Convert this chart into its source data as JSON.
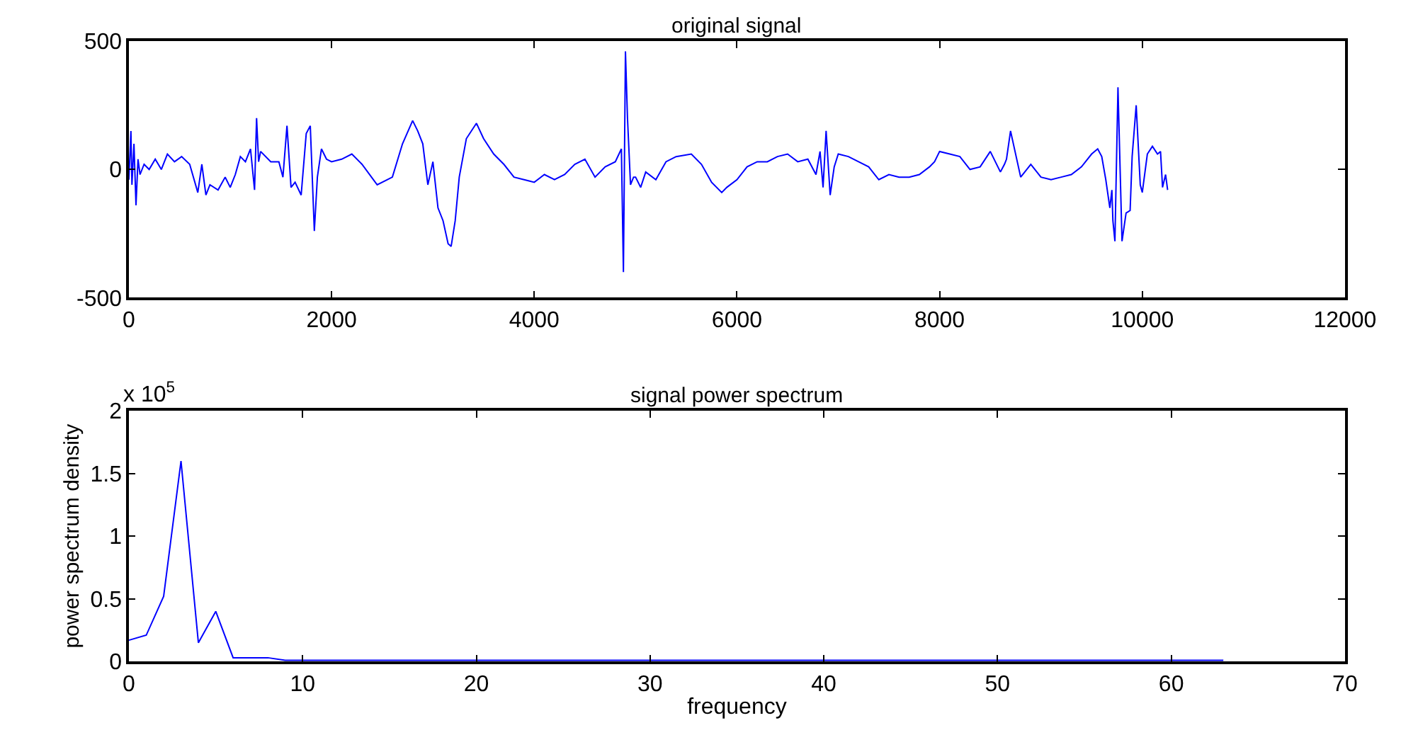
{
  "chart_data": [
    {
      "type": "line",
      "title": "original signal",
      "color": "#0000ff",
      "grid": false,
      "x": [
        0,
        20,
        30,
        50,
        70,
        90,
        110,
        150,
        200,
        260,
        320,
        380,
        450,
        520,
        600,
        680,
        720,
        760,
        800,
        880,
        950,
        1000,
        1050,
        1100,
        1150,
        1200,
        1240,
        1260,
        1280,
        1300,
        1400,
        1480,
        1520,
        1560,
        1600,
        1640,
        1700,
        1750,
        1790,
        1830,
        1860,
        1900,
        1950,
        2000,
        2100,
        2200,
        2300,
        2450,
        2600,
        2700,
        2800,
        2850,
        2900,
        2950,
        3000,
        3050,
        3100,
        3150,
        3180,
        3220,
        3260,
        3330,
        3430,
        3500,
        3600,
        3700,
        3800,
        3900,
        4000,
        4100,
        4200,
        4300,
        4400,
        4500,
        4600,
        4700,
        4800,
        4860,
        4880,
        4900,
        4920,
        4950,
        4980,
        5000,
        5050,
        5100,
        5200,
        5300,
        5400,
        5550,
        5650,
        5750,
        5850,
        5900,
        6000,
        6100,
        6200,
        6300,
        6400,
        6500,
        6600,
        6700,
        6780,
        6820,
        6850,
        6880,
        6920,
        6960,
        7000,
        7100,
        7200,
        7300,
        7400,
        7500,
        7600,
        7700,
        7800,
        7900,
        7950,
        8000,
        8100,
        8200,
        8300,
        8400,
        8500,
        8600,
        8640,
        8660,
        8700,
        8800,
        8900,
        9000,
        9100,
        9200,
        9300,
        9400,
        9500,
        9560,
        9600,
        9640,
        9680,
        9700,
        9710,
        9730,
        9760,
        9800,
        9840,
        9880,
        9900,
        9940,
        9980,
        10000,
        10050,
        10100,
        10150,
        10180,
        10200,
        10230,
        10250
      ],
      "values": [
        -40,
        150,
        -60,
        100,
        -140,
        40,
        -20,
        20,
        0,
        40,
        0,
        60,
        30,
        50,
        20,
        -90,
        20,
        -100,
        -60,
        -80,
        -30,
        -70,
        -20,
        50,
        30,
        80,
        -80,
        200,
        30,
        70,
        30,
        30,
        -30,
        170,
        -70,
        -50,
        -100,
        140,
        170,
        -240,
        -30,
        80,
        40,
        30,
        40,
        60,
        20,
        -60,
        -30,
        100,
        190,
        150,
        100,
        -60,
        30,
        -150,
        -200,
        -290,
        -300,
        -200,
        -30,
        120,
        180,
        120,
        60,
        20,
        -30,
        -40,
        -50,
        -20,
        -40,
        -20,
        20,
        40,
        -30,
        10,
        30,
        80,
        -400,
        460,
        200,
        -60,
        -30,
        -30,
        -70,
        -10,
        -40,
        30,
        50,
        60,
        20,
        -50,
        -90,
        -70,
        -40,
        10,
        30,
        30,
        50,
        60,
        30,
        40,
        -20,
        70,
        -70,
        150,
        -100,
        10,
        60,
        50,
        30,
        10,
        -40,
        -20,
        -30,
        -30,
        -20,
        10,
        30,
        70,
        60,
        50,
        0,
        10,
        70,
        -10,
        20,
        40,
        150,
        -30,
        20,
        -30,
        -40,
        -30,
        -20,
        10,
        60,
        80,
        50,
        -40,
        -150,
        -80,
        -200,
        -280,
        320,
        -280,
        -170,
        -160,
        50,
        250,
        -60,
        -90,
        60,
        90,
        60,
        70,
        -70,
        -20,
        -80
      ],
      "xlim": [
        0,
        12000
      ],
      "xticks": [
        0,
        2000,
        4000,
        6000,
        8000,
        10000,
        12000
      ],
      "ylim": [
        -500,
        500
      ],
      "yticks": [
        -500,
        0,
        500
      ]
    },
    {
      "type": "line",
      "title": "signal power spectrum",
      "xlabel": "frequency",
      "ylabel": "power spectrum density",
      "color": "#0000ff",
      "grid": false,
      "annotations": [
        "x 10$^{5}$"
      ],
      "x": [
        0,
        1,
        2,
        3,
        4,
        5,
        6,
        7,
        8,
        9,
        10,
        11,
        12,
        13,
        14,
        15,
        16,
        17,
        18,
        19,
        20,
        21,
        22,
        23,
        24,
        25,
        26,
        27,
        28,
        29,
        30,
        31,
        32,
        33,
        34,
        35,
        36,
        37,
        38,
        39,
        40,
        41,
        42,
        43,
        44,
        45,
        46,
        47,
        48,
        49,
        50,
        51,
        52,
        53,
        54,
        55,
        56,
        57,
        58,
        59,
        60,
        61,
        62,
        63
      ],
      "values": [
        0.17,
        0.21,
        0.52,
        1.6,
        0.15,
        0.4,
        0.03,
        0.03,
        0.03,
        0.01,
        0.01,
        0.01,
        0.01,
        0.01,
        0.01,
        0.01,
        0.01,
        0.01,
        0.01,
        0.01,
        0.01,
        0.01,
        0.01,
        0.01,
        0.01,
        0.01,
        0.01,
        0.01,
        0.01,
        0.01,
        0.01,
        0.01,
        0.01,
        0.01,
        0.01,
        0.01,
        0.01,
        0.01,
        0.01,
        0.01,
        0.01,
        0.01,
        0.01,
        0.01,
        0.01,
        0.01,
        0.01,
        0.01,
        0.01,
        0.01,
        0.01,
        0.01,
        0.01,
        0.01,
        0.01,
        0.01,
        0.01,
        0.01,
        0.01,
        0.01,
        0.01,
        0.01,
        0.01,
        0.01
      ],
      "xlim": [
        0,
        70
      ],
      "xticks": [
        0,
        10,
        20,
        30,
        40,
        50,
        60,
        70
      ],
      "ylim": [
        0,
        2
      ],
      "yticks": [
        0,
        0.5,
        1,
        1.5,
        2
      ]
    }
  ]
}
